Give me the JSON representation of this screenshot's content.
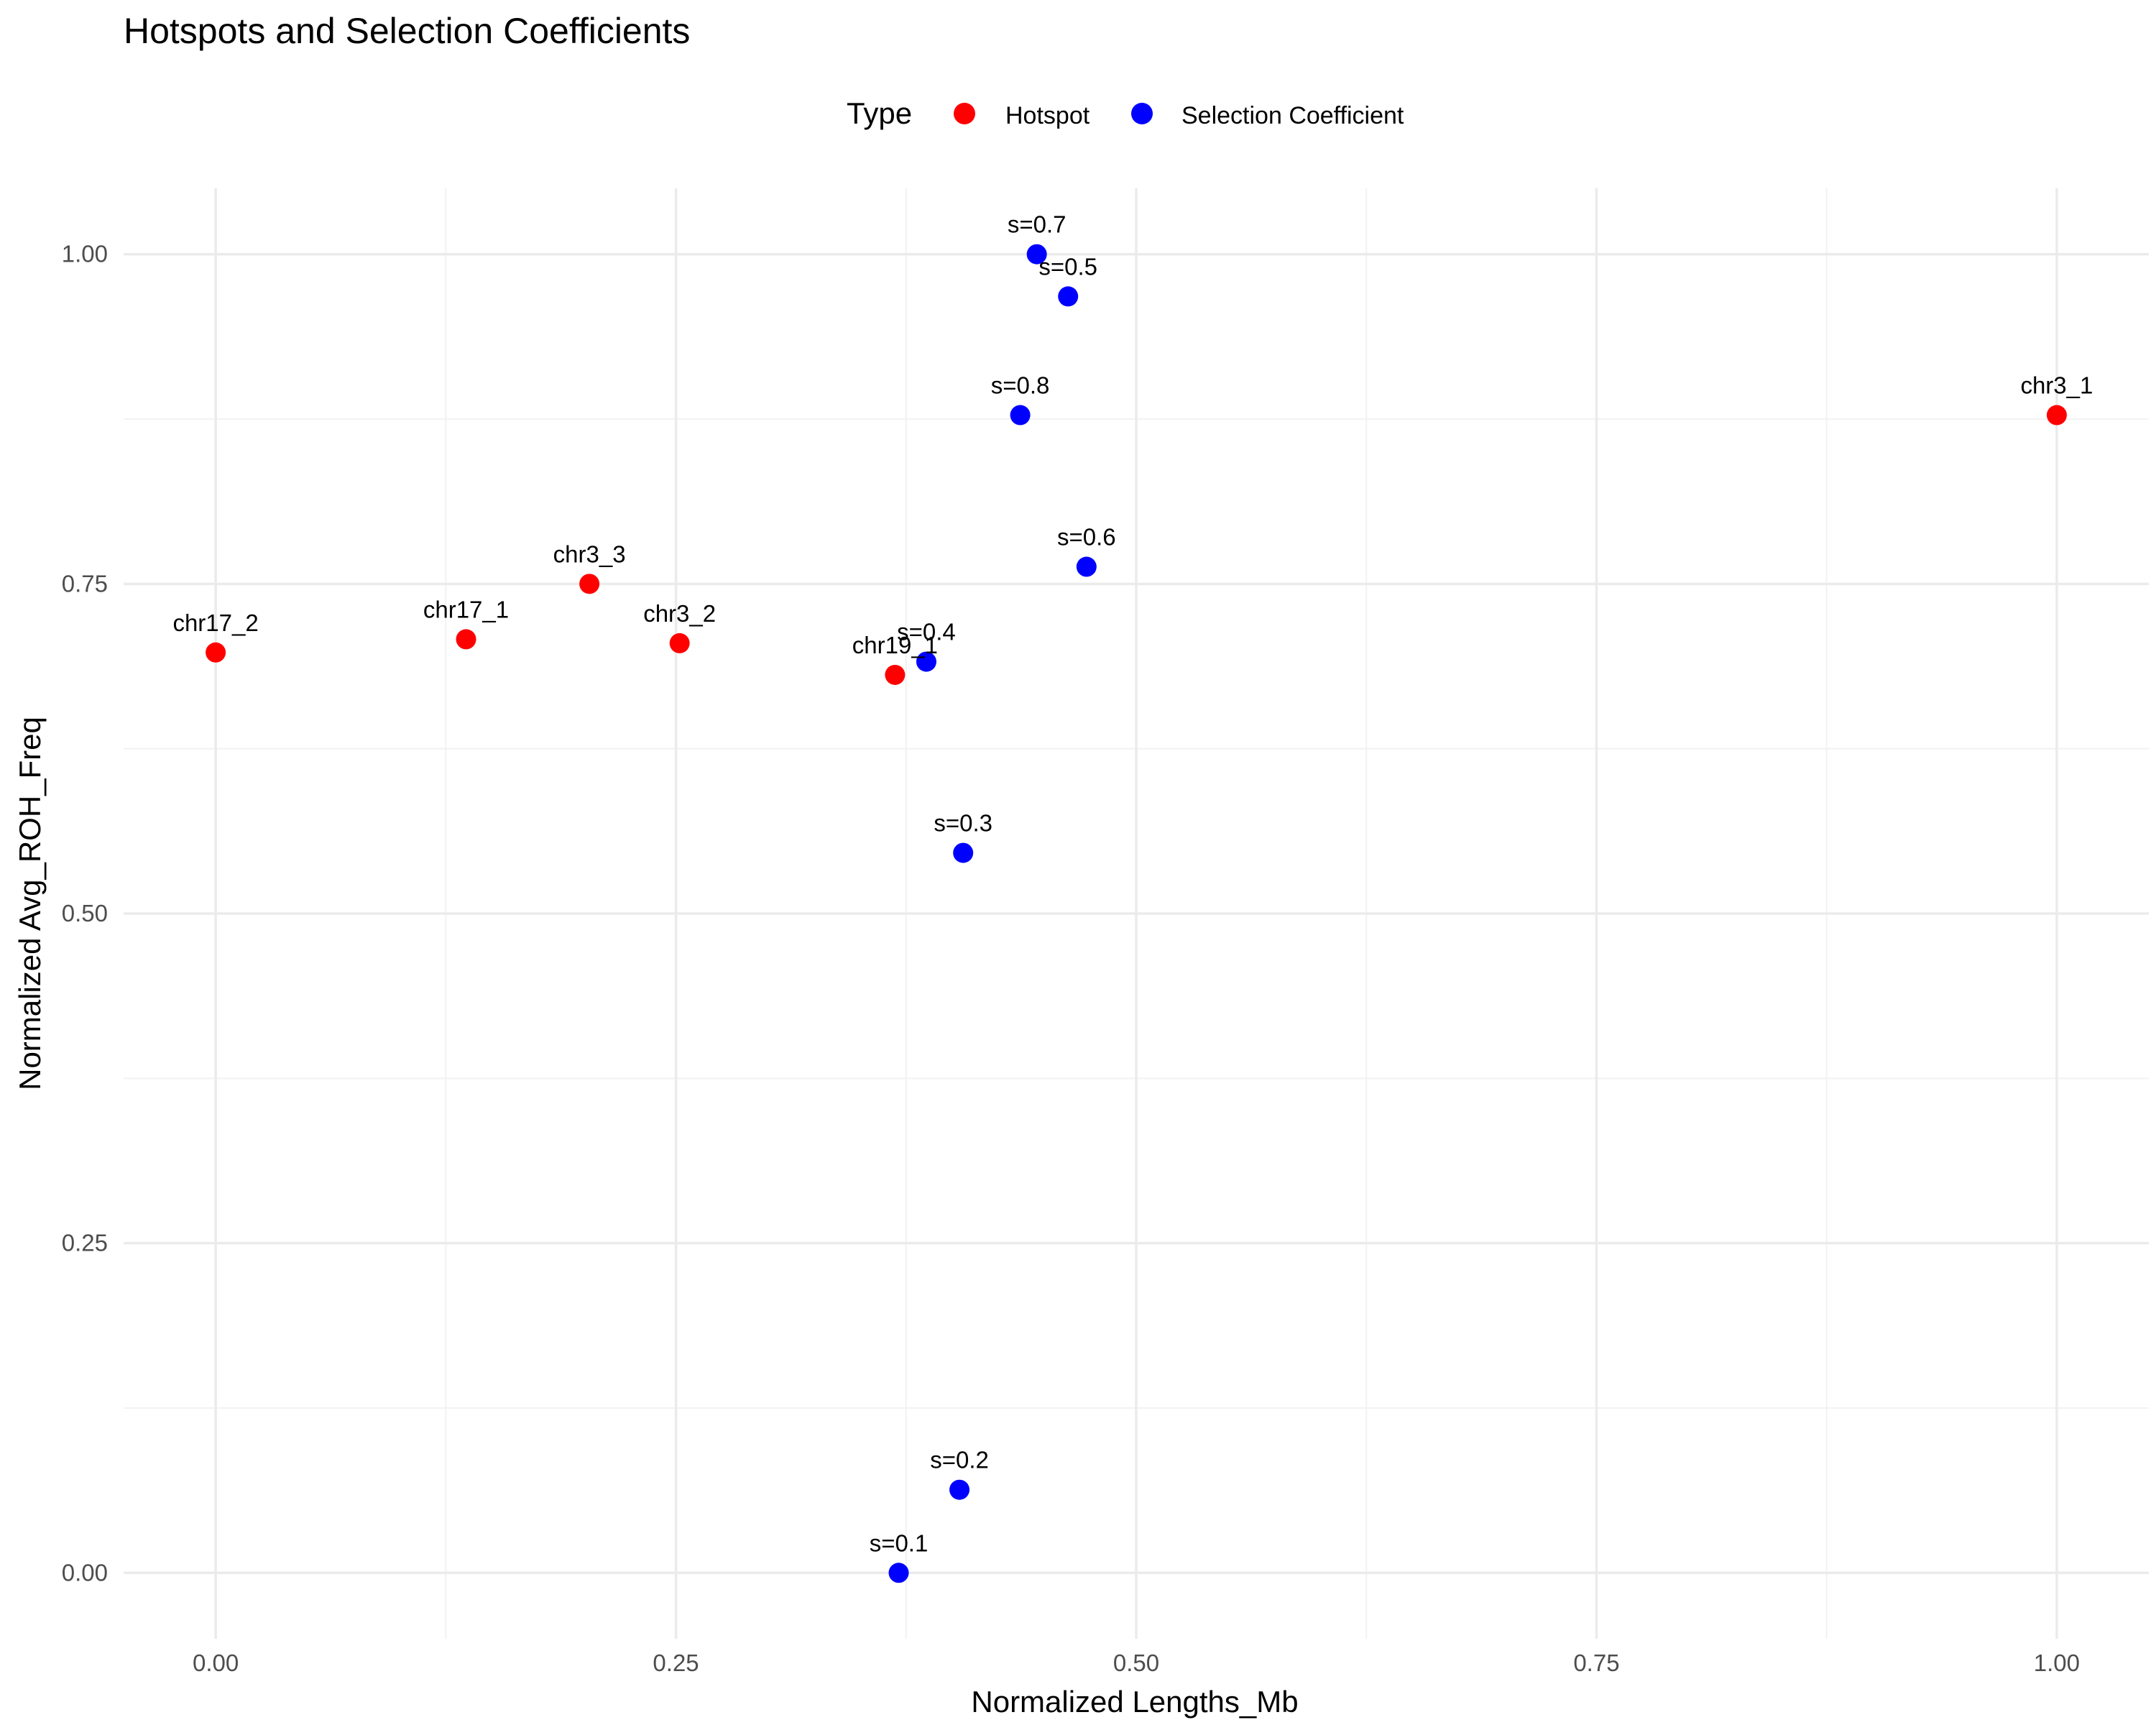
{
  "colors": {
    "Hotspot": "#ff0000",
    "Selection Coefficient": "#0000ff"
  },
  "chart_data": {
    "type": "scatter",
    "title": "Hotspots and Selection Coefficients",
    "xlabel": "Normalized Lengths_Mb",
    "ylabel": "Normalized Avg_ROH_Freq",
    "xlim": [
      -0.05,
      1.05
    ],
    "ylim": [
      -0.05,
      1.05
    ],
    "x_ticks": [
      0,
      0.25,
      0.5,
      0.75,
      1
    ],
    "x_tick_labels": [
      "0.00",
      "0.25",
      "0.50",
      "0.75",
      "1.00"
    ],
    "y_ticks": [
      0,
      0.25,
      0.5,
      0.75,
      1
    ],
    "y_tick_labels": [
      "0.00",
      "0.25",
      "0.50",
      "0.75",
      "1.00"
    ],
    "grid": true,
    "legend": {
      "title": "Type",
      "position": "top",
      "entries": [
        "Hotspot",
        "Selection Coefficient"
      ]
    },
    "series": [
      {
        "name": "Hotspot",
        "points": [
          {
            "label": "chr3_1",
            "x": 1.0,
            "y": 0.878
          },
          {
            "label": "chr3_3",
            "x": 0.203,
            "y": 0.75
          },
          {
            "label": "chr17_1",
            "x": 0.136,
            "y": 0.708
          },
          {
            "label": "chr17_2",
            "x": 0.0,
            "y": 0.698
          },
          {
            "label": "chr3_2",
            "x": 0.252,
            "y": 0.705
          },
          {
            "label": "chr19_1",
            "x": 0.369,
            "y": 0.681
          }
        ]
      },
      {
        "name": "Selection Coefficient",
        "points": [
          {
            "label": "s=0.7",
            "x": 0.446,
            "y": 1.0
          },
          {
            "label": "s=0.5",
            "x": 0.463,
            "y": 0.968
          },
          {
            "label": "s=0.8",
            "x": 0.437,
            "y": 0.878
          },
          {
            "label": "s=0.6",
            "x": 0.473,
            "y": 0.763
          },
          {
            "label": "s=0.4",
            "x": 0.386,
            "y": 0.691
          },
          {
            "label": "s=0.3",
            "x": 0.406,
            "y": 0.546
          },
          {
            "label": "s=0.2",
            "x": 0.404,
            "y": 0.063
          },
          {
            "label": "s=0.1",
            "x": 0.371,
            "y": 0.0
          }
        ]
      }
    ]
  }
}
